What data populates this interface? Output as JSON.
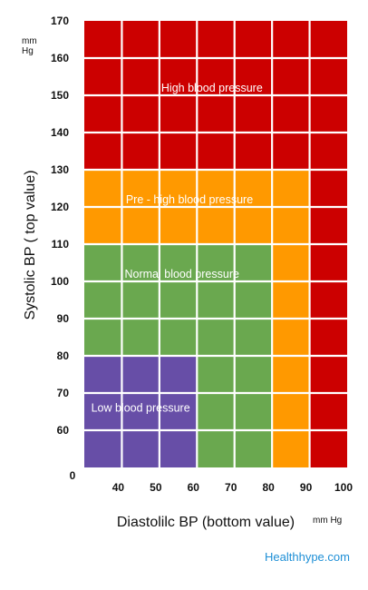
{
  "chart_data": {
    "type": "area",
    "xlabel": "Diastolilc BP (bottom value)",
    "ylabel": "Systolic BP ( top value)",
    "x_unit": "mm Hg",
    "y_unit": [
      "mm",
      "Hg"
    ],
    "origin_label": "0",
    "xlim": [
      30,
      100
    ],
    "ylim": [
      50,
      170
    ],
    "x_ticks": [
      40,
      50,
      60,
      70,
      80,
      90,
      100
    ],
    "y_ticks": [
      60,
      70,
      80,
      90,
      100,
      110,
      120,
      130,
      140,
      150,
      160,
      170
    ],
    "grid": true,
    "zones": [
      {
        "label": "High blood pressure",
        "color": "#cc0000",
        "x": [
          30,
          100
        ],
        "y": [
          50,
          170
        ]
      },
      {
        "label": "Pre - high blood pressure",
        "color": "#ff9900",
        "x": [
          30,
          90
        ],
        "y": [
          50,
          130
        ]
      },
      {
        "label": "Normal blood pressure",
        "color": "#6aa84f",
        "x": [
          30,
          80
        ],
        "y": [
          50,
          110
        ]
      },
      {
        "label": "Low blood pressure",
        "color": "#674ea7",
        "x": [
          30,
          60
        ],
        "y": [
          50,
          80
        ]
      }
    ],
    "zone_label_positions": [
      {
        "x": 64,
        "y": 151
      },
      {
        "x": 58,
        "y": 121
      },
      {
        "x": 56,
        "y": 101
      },
      {
        "x": 45,
        "y": 65
      }
    ]
  },
  "credit": "Healthhype.com"
}
